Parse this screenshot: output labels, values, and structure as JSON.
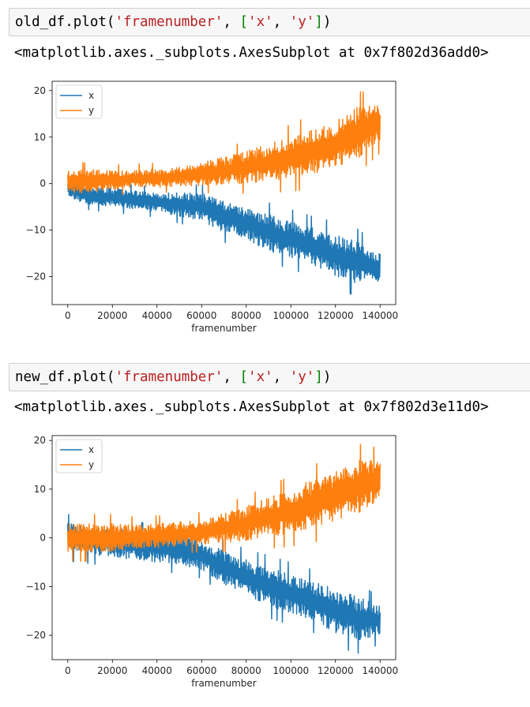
{
  "cells": [
    {
      "code": {
        "obj": "old_df.plot(",
        "arg1": "'framenumber'",
        "sep1": ", ",
        "lbr": "[",
        "s1": "'x'",
        "sep2": ", ",
        "s2": "'y'",
        "rbr": "]",
        "close": ")"
      },
      "output": "<matplotlib.axes._subplots.AxesSubplot at 0x7f802d36add0>"
    },
    {
      "code": {
        "obj": "new_df.plot(",
        "arg1": "'framenumber'",
        "sep1": ", ",
        "lbr": "[",
        "s1": "'x'",
        "sep2": ", ",
        "s2": "'y'",
        "rbr": "]",
        "close": ")"
      },
      "output": "<matplotlib.axes._subplots.AxesSubplot at 0x7f802d3e11d0>"
    }
  ],
  "colors": {
    "x": "#1f77b4",
    "y": "#ff7f0e"
  },
  "chart_data": [
    {
      "type": "line",
      "xlabel": "framenumber",
      "ylabel": "",
      "xlim": [
        -7000,
        147000
      ],
      "ylim": [
        -26,
        22
      ],
      "xticks": [
        0,
        20000,
        40000,
        60000,
        80000,
        100000,
        120000,
        140000
      ],
      "yticks": [
        -20,
        -10,
        0,
        10,
        20
      ],
      "legend": "top-left",
      "grid": false,
      "series": [
        {
          "name": "x",
          "x": [
            0,
            10000,
            20000,
            30000,
            40000,
            50000,
            60000,
            70000,
            80000,
            90000,
            100000,
            110000,
            120000,
            130000,
            140000
          ],
          "center": [
            -1.0,
            -2.5,
            -3.0,
            -3.5,
            -4.0,
            -4.5,
            -5.0,
            -7.0,
            -8.5,
            -10.5,
            -12.0,
            -13.5,
            -15.5,
            -17.0,
            -18.0
          ],
          "spread": [
            2.0,
            2.0,
            2.0,
            2.0,
            2.0,
            2.5,
            3.0,
            3.5,
            3.5,
            4.0,
            4.0,
            4.0,
            4.5,
            4.5,
            3.0
          ]
        },
        {
          "name": "y",
          "x": [
            0,
            10000,
            20000,
            30000,
            40000,
            50000,
            60000,
            70000,
            80000,
            90000,
            100000,
            110000,
            120000,
            130000,
            140000
          ],
          "center": [
            0.5,
            0.5,
            0.8,
            1.0,
            1.2,
            1.5,
            2.0,
            2.8,
            3.5,
            4.5,
            5.5,
            7.0,
            8.5,
            11.0,
            13.0
          ],
          "spread": [
            2.5,
            2.5,
            2.0,
            2.0,
            2.0,
            2.0,
            2.5,
            3.0,
            3.5,
            4.0,
            4.5,
            5.0,
            5.0,
            5.5,
            4.0
          ]
        }
      ]
    },
    {
      "type": "line",
      "xlabel": "framenumber",
      "ylabel": "",
      "xlim": [
        -7000,
        147000
      ],
      "ylim": [
        -25,
        21
      ],
      "xticks": [
        0,
        20000,
        40000,
        60000,
        80000,
        100000,
        120000,
        140000
      ],
      "yticks": [
        -20,
        -10,
        0,
        10,
        20
      ],
      "legend": "top-left",
      "grid": false,
      "series": [
        {
          "name": "x",
          "x": [
            0,
            10000,
            20000,
            30000,
            40000,
            50000,
            60000,
            70000,
            80000,
            90000,
            100000,
            110000,
            120000,
            130000,
            140000
          ],
          "center": [
            0.0,
            -0.5,
            -1.0,
            -1.5,
            -2.0,
            -2.5,
            -3.5,
            -6.0,
            -8.0,
            -10.0,
            -11.5,
            -13.0,
            -15.0,
            -16.5,
            -17.0
          ],
          "spread": [
            3.0,
            3.0,
            3.0,
            3.0,
            3.0,
            3.0,
            3.0,
            3.5,
            3.5,
            4.0,
            4.0,
            4.0,
            4.5,
            4.5,
            3.0
          ]
        },
        {
          "name": "y",
          "x": [
            0,
            10000,
            20000,
            30000,
            40000,
            50000,
            60000,
            70000,
            80000,
            90000,
            100000,
            110000,
            120000,
            130000,
            140000
          ],
          "center": [
            0.0,
            0.0,
            0.0,
            0.3,
            0.5,
            0.8,
            1.2,
            2.0,
            3.0,
            4.2,
            5.5,
            7.0,
            8.5,
            10.5,
            12.0
          ],
          "spread": [
            3.0,
            3.0,
            3.0,
            2.5,
            2.5,
            2.5,
            2.5,
            3.0,
            3.5,
            4.0,
            4.5,
            5.0,
            5.0,
            5.5,
            4.0
          ]
        }
      ]
    }
  ]
}
